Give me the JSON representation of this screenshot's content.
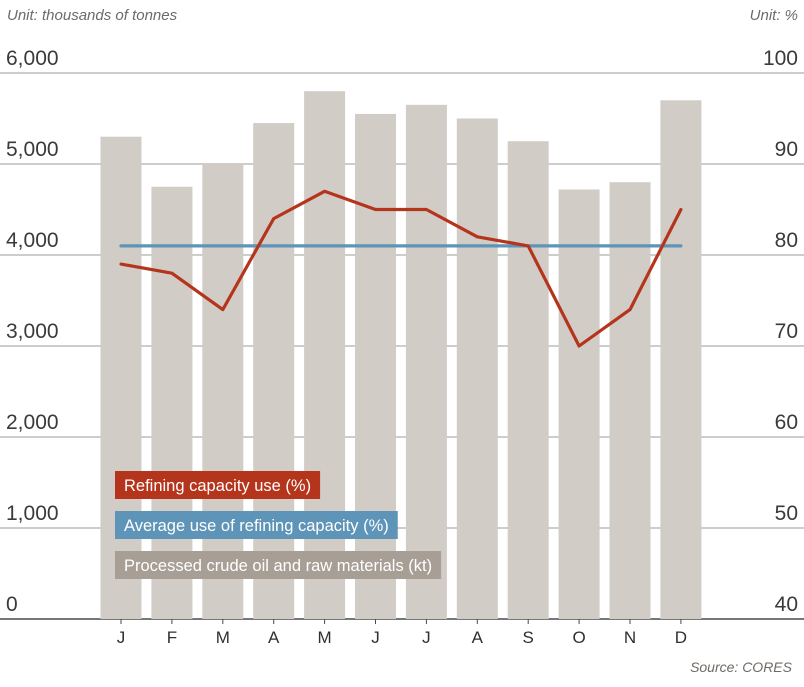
{
  "chart_data": {
    "type": "bar",
    "categories": [
      "J",
      "F",
      "M",
      "A",
      "M",
      "J",
      "J",
      "A",
      "S",
      "O",
      "N",
      "D"
    ],
    "left_unit": "Unit: thousands of tonnes",
    "right_unit": "Unit: %",
    "source": "Source: CORES",
    "left_axis": {
      "ylim": [
        0,
        6000
      ],
      "ticks": [
        "0",
        "1,000",
        "2,000",
        "3,000",
        "4,000",
        "5,000",
        "6,000"
      ]
    },
    "right_axis": {
      "ylim": [
        40,
        100
      ],
      "ticks": [
        "40",
        "50",
        "60",
        "70",
        "80",
        "90",
        "100"
      ]
    },
    "grid": true,
    "legend_position": "bottom-left",
    "series": [
      {
        "name": "Processed crude oil and raw materials (kt)",
        "type": "bar",
        "axis": "left",
        "color": "#d1ccc6",
        "legend_color": "#a79e95",
        "values": [
          5300,
          4750,
          5000,
          5450,
          5800,
          5550,
          5650,
          5500,
          5250,
          4720,
          4800,
          5700
        ]
      },
      {
        "name": "Refining capacity use (%)",
        "type": "line",
        "axis": "right",
        "color": "#b5341c",
        "values": [
          79,
          78,
          74,
          84,
          87,
          85,
          85,
          82,
          81,
          70,
          74,
          85
        ]
      },
      {
        "name": "Average use of refining capacity (%)",
        "type": "line",
        "axis": "right",
        "color": "#5d94b7",
        "values": [
          81,
          81,
          81,
          81,
          81,
          81,
          81,
          81,
          81,
          81,
          81,
          81
        ]
      }
    ]
  }
}
